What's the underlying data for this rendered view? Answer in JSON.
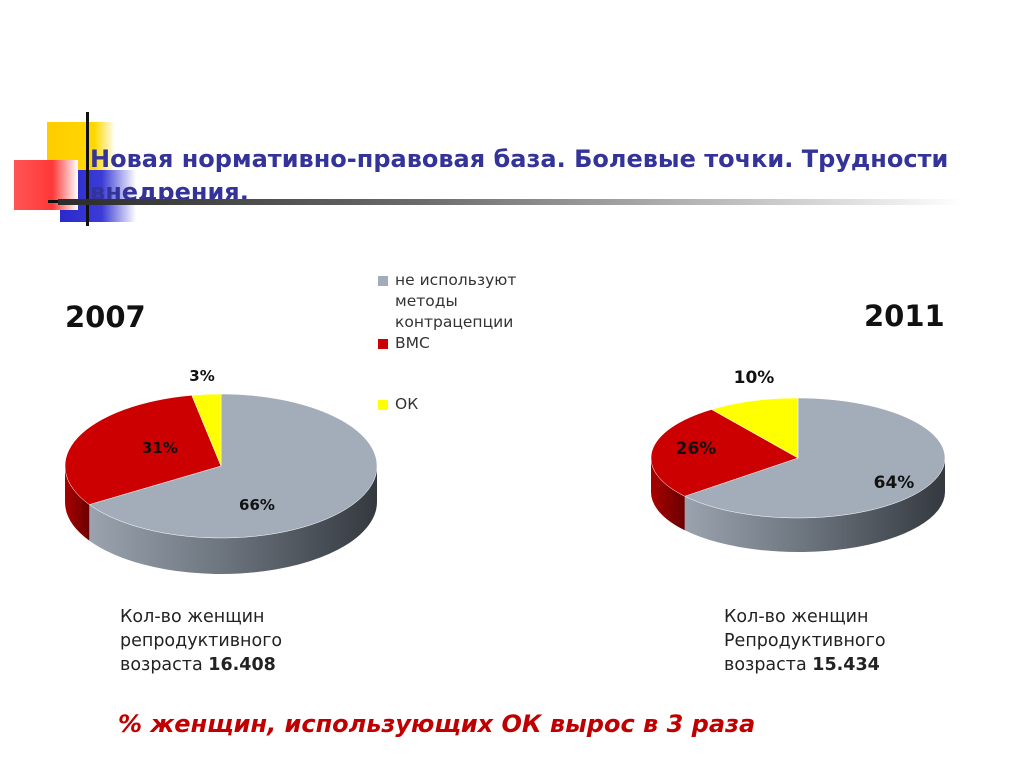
{
  "slide": {
    "title": "Новая нормативно-правовая база. Болевые точки. Трудности внедрения.",
    "conclusion": "% женщин, использующих ОК вырос в 3 раза"
  },
  "legend": [
    {
      "label": "не используют методы контрацепции",
      "color": "#a3adb9"
    },
    {
      "label": "ВМС",
      "color": "#cc0000"
    },
    {
      "label": "ОК",
      "color": "#ffff00"
    }
  ],
  "chart_data": [
    {
      "type": "pie",
      "title": "2007",
      "categories": [
        "не используют методы контрацепции",
        "ВМС",
        "ОК"
      ],
      "values": [
        66,
        31,
        3
      ],
      "labels": [
        "66%",
        "31%",
        "3%"
      ],
      "colors": [
        "#a3adb9",
        "#cc0000",
        "#ffff00"
      ],
      "caption": {
        "text": "Кол-во женщин репродуктивного возраста",
        "value": "16.408"
      }
    },
    {
      "type": "pie",
      "title": "2011",
      "categories": [
        "не используют методы контрацепции",
        "ВМС",
        "ОК"
      ],
      "values": [
        64,
        26,
        10
      ],
      "labels": [
        "64%",
        "26%",
        "10%"
      ],
      "colors": [
        "#a3adb9",
        "#cc0000",
        "#ffff00"
      ],
      "caption": {
        "text": "Кол-во женщин Репродуктивного возраста",
        "value": "15.434"
      }
    }
  ]
}
